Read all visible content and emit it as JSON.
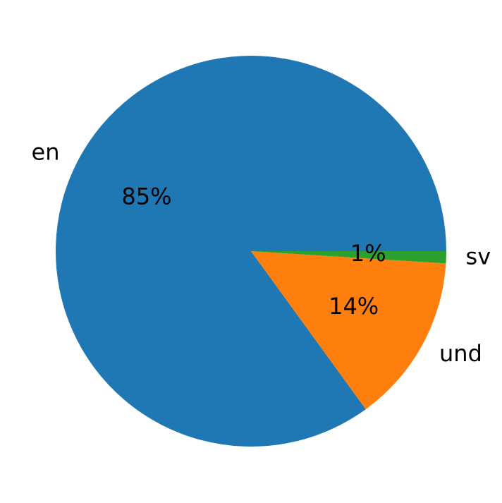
{
  "chart_data": {
    "type": "pie",
    "categories": [
      "en",
      "und",
      "sv"
    ],
    "values": [
      85,
      14,
      1
    ],
    "value_labels": [
      "85%",
      "14%",
      "1%"
    ],
    "colors": [
      "#1f77b4",
      "#ff7f0e",
      "#2ca02c"
    ]
  }
}
